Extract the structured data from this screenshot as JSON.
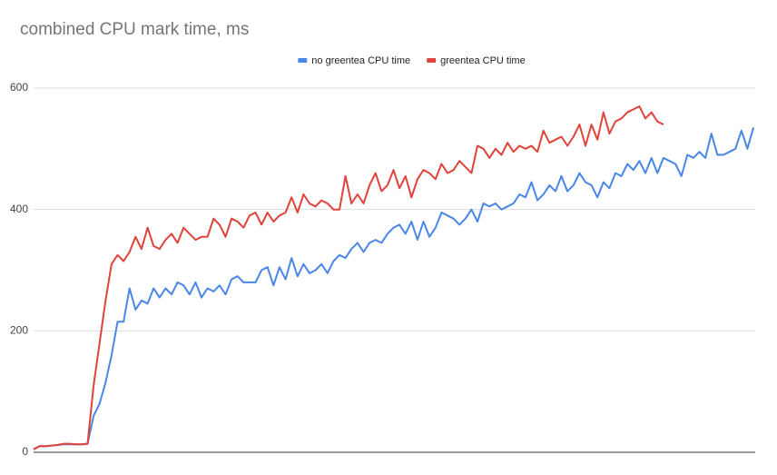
{
  "chart_data": {
    "type": "line",
    "title": "combined CPU mark time, ms",
    "ylim": [
      0,
      600
    ],
    "yticks": [
      0,
      200,
      400,
      600
    ],
    "grid": true,
    "legend": "top",
    "series": [
      {
        "name": "no greentea CPU time",
        "color": "#4a86e8",
        "values": [
          5,
          10,
          10,
          11,
          12,
          13,
          13,
          13,
          13,
          14,
          60,
          80,
          115,
          160,
          215,
          215,
          270,
          235,
          250,
          245,
          270,
          255,
          270,
          260,
          280,
          275,
          260,
          280,
          255,
          270,
          265,
          275,
          260,
          285,
          290,
          280,
          280,
          280,
          300,
          305,
          275,
          305,
          285,
          320,
          290,
          310,
          295,
          300,
          310,
          295,
          315,
          325,
          320,
          335,
          345,
          330,
          345,
          350,
          345,
          360,
          370,
          375,
          360,
          380,
          350,
          380,
          355,
          370,
          395,
          390,
          385,
          375,
          385,
          400,
          380,
          410,
          405,
          410,
          400,
          405,
          410,
          425,
          420,
          445,
          415,
          425,
          440,
          430,
          455,
          430,
          440,
          460,
          445,
          440,
          420,
          445,
          435,
          460,
          455,
          475,
          465,
          480,
          460,
          485,
          460,
          485,
          480,
          475,
          455,
          490,
          485,
          495,
          485,
          525,
          490,
          490,
          495,
          500,
          530,
          500,
          535
        ]
      },
      {
        "name": "greentea CPU time",
        "color": "#e0433a",
        "values": [
          5,
          10,
          10,
          11,
          12,
          14,
          14,
          13,
          13,
          14,
          110,
          180,
          250,
          310,
          325,
          315,
          330,
          355,
          335,
          370,
          340,
          335,
          350,
          360,
          345,
          370,
          360,
          350,
          355,
          355,
          385,
          375,
          355,
          385,
          380,
          370,
          390,
          395,
          375,
          395,
          380,
          390,
          395,
          420,
          395,
          425,
          410,
          405,
          415,
          410,
          400,
          400,
          455,
          410,
          425,
          410,
          440,
          460,
          430,
          440,
          465,
          435,
          455,
          420,
          450,
          465,
          460,
          450,
          475,
          460,
          465,
          480,
          470,
          460,
          505,
          500,
          485,
          500,
          490,
          510,
          495,
          505,
          500,
          505,
          495,
          530,
          510,
          515,
          520,
          505,
          520,
          540,
          505,
          540,
          515,
          560,
          525,
          545,
          550,
          560,
          565,
          570,
          550,
          560,
          545,
          540,
          null,
          null,
          null,
          null,
          null,
          null,
          null,
          null,
          null,
          null,
          null,
          null,
          null,
          null,
          null
        ]
      }
    ]
  }
}
